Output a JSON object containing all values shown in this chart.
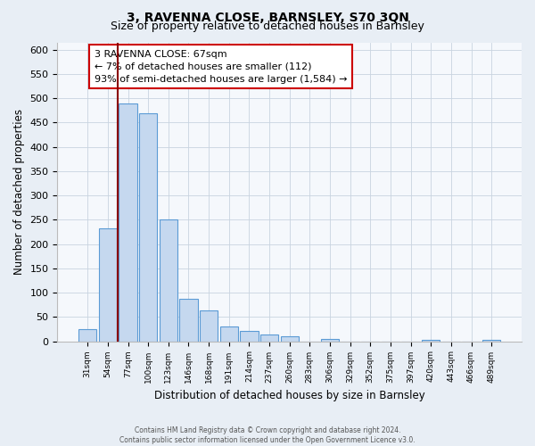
{
  "title": "3, RAVENNA CLOSE, BARNSLEY, S70 3QN",
  "subtitle": "Size of property relative to detached houses in Barnsley",
  "xlabel": "Distribution of detached houses by size in Barnsley",
  "ylabel": "Number of detached properties",
  "bar_labels": [
    "31sqm",
    "54sqm",
    "77sqm",
    "100sqm",
    "123sqm",
    "146sqm",
    "168sqm",
    "191sqm",
    "214sqm",
    "237sqm",
    "260sqm",
    "283sqm",
    "306sqm",
    "329sqm",
    "352sqm",
    "375sqm",
    "397sqm",
    "420sqm",
    "443sqm",
    "466sqm",
    "489sqm"
  ],
  "bar_values": [
    25,
    232,
    490,
    470,
    250,
    88,
    63,
    30,
    22,
    13,
    10,
    0,
    5,
    0,
    0,
    0,
    0,
    3,
    0,
    0,
    3
  ],
  "bar_color": "#c5d8ef",
  "bar_edge_color": "#5b9bd5",
  "vline_color": "#8b0000",
  "annotation_line1": "3 RAVENNA CLOSE: 67sqm",
  "annotation_line2": "← 7% of detached houses are smaller (112)",
  "annotation_line3": "93% of semi-detached houses are larger (1,584) →",
  "annotation_box_color": "#ffffff",
  "annotation_box_edge": "#cc0000",
  "ylim": [
    0,
    615
  ],
  "yticks": [
    0,
    50,
    100,
    150,
    200,
    250,
    300,
    350,
    400,
    450,
    500,
    550,
    600
  ],
  "footer_line1": "Contains HM Land Registry data © Crown copyright and database right 2024.",
  "footer_line2": "Contains public sector information licensed under the Open Government Licence v3.0.",
  "bg_color": "#e8eef5",
  "plot_bg_color": "#f5f8fc",
  "grid_color": "#c8d4e0"
}
